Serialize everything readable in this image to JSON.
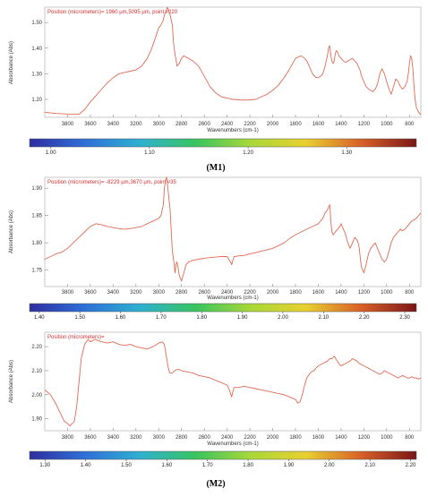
{
  "chart_data": [
    {
      "type": "line",
      "title": "Position (micrometers)= 1960 µm,5095 µm, point #220",
      "xlabel": "Wavenumbers (cm-1)",
      "ylabel": "Absorbance (Abs)",
      "x_reversed": true,
      "xlim": [
        4000,
        700
      ],
      "ylim": [
        1.13,
        1.56
      ],
      "xticks": [
        3800,
        3600,
        3400,
        3200,
        3000,
        2800,
        2600,
        2400,
        2200,
        2000,
        1800,
        1600,
        1400,
        1200,
        1000,
        800
      ],
      "yticks": [
        1.2,
        1.3,
        1.4,
        1.5
      ],
      "ytick_labels": [
        "1.20",
        "1.30",
        "1.40",
        "1.50"
      ],
      "line_color": "#e06a55",
      "series": [
        {
          "x": [
            4000,
            3900,
            3800,
            3700,
            3650,
            3600,
            3550,
            3500,
            3450,
            3400,
            3350,
            3300,
            3250,
            3200,
            3150,
            3100,
            3060,
            3030,
            3000,
            2980,
            2960,
            2950,
            2940,
            2925,
            2915,
            2900,
            2880,
            2870,
            2855,
            2850,
            2840,
            2820,
            2800,
            2780,
            2760,
            2740,
            2720,
            2700,
            2650,
            2600,
            2550,
            2500,
            2450,
            2400,
            2350,
            2300,
            2250,
            2200,
            2150,
            2100,
            2050,
            2000,
            1950,
            1900,
            1850,
            1800,
            1750,
            1720,
            1700,
            1680,
            1650,
            1620,
            1600,
            1580,
            1560,
            1540,
            1520,
            1510,
            1500,
            1495,
            1490,
            1480,
            1470,
            1460,
            1450,
            1440,
            1430,
            1420,
            1400,
            1380,
            1360,
            1340,
            1320,
            1300,
            1280,
            1260,
            1250,
            1240,
            1230,
            1220,
            1200,
            1180,
            1160,
            1140,
            1120,
            1100,
            1080,
            1060,
            1040,
            1020,
            1000,
            980,
            960,
            940,
            920,
            900,
            880,
            860,
            840,
            820,
            810,
            800,
            790,
            780,
            770,
            760,
            750,
            740,
            720,
            700
          ],
          "y": [
            1.15,
            1.145,
            1.143,
            1.142,
            1.16,
            1.19,
            1.215,
            1.24,
            1.265,
            1.285,
            1.3,
            1.305,
            1.31,
            1.315,
            1.33,
            1.36,
            1.4,
            1.44,
            1.48,
            1.49,
            1.51,
            1.53,
            1.54,
            1.56,
            1.55,
            1.53,
            1.49,
            1.42,
            1.37,
            1.36,
            1.33,
            1.34,
            1.36,
            1.37,
            1.365,
            1.36,
            1.355,
            1.35,
            1.33,
            1.29,
            1.25,
            1.225,
            1.21,
            1.205,
            1.2,
            1.198,
            1.197,
            1.198,
            1.2,
            1.21,
            1.22,
            1.235,
            1.255,
            1.285,
            1.32,
            1.36,
            1.37,
            1.36,
            1.35,
            1.33,
            1.3,
            1.285,
            1.285,
            1.29,
            1.3,
            1.33,
            1.37,
            1.4,
            1.41,
            1.39,
            1.37,
            1.35,
            1.34,
            1.35,
            1.38,
            1.39,
            1.385,
            1.37,
            1.36,
            1.35,
            1.345,
            1.35,
            1.355,
            1.36,
            1.35,
            1.34,
            1.33,
            1.32,
            1.31,
            1.29,
            1.27,
            1.25,
            1.24,
            1.235,
            1.23,
            1.24,
            1.26,
            1.3,
            1.32,
            1.3,
            1.27,
            1.24,
            1.22,
            1.25,
            1.28,
            1.27,
            1.25,
            1.24,
            1.25,
            1.27,
            1.3,
            1.34,
            1.37,
            1.36,
            1.32,
            1.25,
            1.2,
            1.17,
            1.15,
            1.14
          ]
        }
      ]
    },
    {
      "type": "colorbar",
      "tick_labels": [
        "1.00",
        "1.10",
        "1.20",
        "1.30"
      ],
      "tick_positions": [
        0.055,
        0.31,
        0.565,
        0.82
      ],
      "gradient": [
        "#2e2e9e",
        "#2f6fd8",
        "#2fb0d0",
        "#38c460",
        "#a8d838",
        "#e8d030",
        "#d86028",
        "#7a1616"
      ]
    },
    {
      "type": "line",
      "title": "Position (micrometers)= -8229 µm,3670 µm, point #35",
      "xlabel": "Wavenumbers (cm-1)",
      "ylabel": "Absorbance (Abs)",
      "x_reversed": true,
      "xlim": [
        4000,
        700
      ],
      "ylim": [
        1.72,
        1.92
      ],
      "xticks": [
        3800,
        3600,
        3400,
        3200,
        3000,
        2800,
        2600,
        2400,
        2200,
        2000,
        1800,
        1600,
        1400,
        1200,
        1000,
        800
      ],
      "yticks": [
        1.75,
        1.8,
        1.85,
        1.9
      ],
      "ytick_labels": [
        "1.75",
        "1.80",
        "1.85",
        "1.90"
      ],
      "line_color": "#e06a55",
      "series": [
        {
          "x": [
            4000,
            3950,
            3900,
            3850,
            3800,
            3750,
            3700,
            3650,
            3600,
            3550,
            3500,
            3450,
            3400,
            3350,
            3300,
            3250,
            3200,
            3150,
            3100,
            3050,
            3000,
            2980,
            2960,
            2950,
            2940,
            2930,
            2925,
            2915,
            2900,
            2890,
            2880,
            2870,
            2860,
            2855,
            2850,
            2840,
            2830,
            2820,
            2800,
            2780,
            2760,
            2740,
            2700,
            2650,
            2600,
            2550,
            2500,
            2450,
            2400,
            2370,
            2360,
            2340,
            2300,
            2250,
            2200,
            2150,
            2100,
            2050,
            2000,
            1950,
            1900,
            1850,
            1800,
            1750,
            1700,
            1650,
            1600,
            1560,
            1540,
            1520,
            1510,
            1500,
            1495,
            1490,
            1480,
            1470,
            1450,
            1430,
            1410,
            1400,
            1380,
            1360,
            1340,
            1320,
            1300,
            1280,
            1260,
            1250,
            1240,
            1230,
            1220,
            1200,
            1180,
            1160,
            1140,
            1120,
            1100,
            1080,
            1060,
            1040,
            1020,
            1000,
            980,
            960,
            940,
            920,
            900,
            880,
            860,
            840,
            820,
            800,
            780,
            760,
            740,
            720,
            700
          ],
          "y": [
            1.77,
            1.775,
            1.78,
            1.783,
            1.79,
            1.8,
            1.81,
            1.82,
            1.83,
            1.835,
            1.833,
            1.83,
            1.828,
            1.826,
            1.825,
            1.826,
            1.828,
            1.83,
            1.835,
            1.84,
            1.845,
            1.85,
            1.87,
            1.9,
            1.915,
            1.92,
            1.91,
            1.89,
            1.86,
            1.82,
            1.785,
            1.77,
            1.75,
            1.745,
            1.76,
            1.765,
            1.755,
            1.74,
            1.73,
            1.745,
            1.76,
            1.765,
            1.768,
            1.77,
            1.772,
            1.773,
            1.774,
            1.775,
            1.775,
            1.765,
            1.76,
            1.775,
            1.776,
            1.777,
            1.78,
            1.782,
            1.785,
            1.787,
            1.79,
            1.795,
            1.8,
            1.808,
            1.815,
            1.82,
            1.825,
            1.83,
            1.835,
            1.845,
            1.855,
            1.86,
            1.865,
            1.87,
            1.86,
            1.84,
            1.82,
            1.815,
            1.82,
            1.825,
            1.83,
            1.835,
            1.825,
            1.815,
            1.8,
            1.79,
            1.8,
            1.81,
            1.805,
            1.8,
            1.79,
            1.77,
            1.755,
            1.745,
            1.76,
            1.78,
            1.79,
            1.795,
            1.8,
            1.79,
            1.78,
            1.77,
            1.765,
            1.77,
            1.785,
            1.8,
            1.81,
            1.815,
            1.82,
            1.825,
            1.822,
            1.825,
            1.83,
            1.835,
            1.84,
            1.842,
            1.845,
            1.85,
            1.855
          ]
        }
      ]
    },
    {
      "type": "colorbar",
      "tick_labels": [
        "1.40",
        "1.50",
        "1.60",
        "1.70",
        "1.80",
        "1.90",
        "2.00",
        "2.10",
        "2.20",
        "2.30"
      ],
      "tick_positions": [
        0.025,
        0.13,
        0.235,
        0.34,
        0.445,
        0.55,
        0.655,
        0.76,
        0.865,
        0.97
      ],
      "gradient": [
        "#2e2e9e",
        "#2f6fd8",
        "#2fb0d0",
        "#38c460",
        "#a8d838",
        "#e8d030",
        "#d86028",
        "#7a1616"
      ]
    },
    {
      "type": "line",
      "title": "Position (micrometers)=",
      "xlabel": "Wavenumbers (cm-1)",
      "ylabel": "Absorbance (Abs)",
      "x_reversed": true,
      "xlim": [
        4000,
        700
      ],
      "ylim": [
        1.85,
        2.26
      ],
      "xticks": [
        3800,
        3600,
        3400,
        3200,
        3000,
        2800,
        2600,
        2400,
        2200,
        2000,
        1800,
        1600,
        1400,
        1200,
        1000,
        800
      ],
      "yticks": [
        1.9,
        2.0,
        2.1,
        2.2
      ],
      "ytick_labels": [
        "1.90",
        "2.00",
        "2.10",
        "2.20"
      ],
      "line_color": "#e06a55",
      "series": [
        {
          "x": [
            4000,
            3950,
            3900,
            3860,
            3830,
            3800,
            3780,
            3760,
            3740,
            3720,
            3700,
            3680,
            3650,
            3620,
            3600,
            3560,
            3500,
            3450,
            3400,
            3350,
            3300,
            3250,
            3200,
            3150,
            3100,
            3050,
            3000,
            2970,
            2950,
            2930,
            2920,
            2910,
            2900,
            2880,
            2860,
            2840,
            2820,
            2800,
            2750,
            2700,
            2650,
            2600,
            2550,
            2500,
            2450,
            2400,
            2380,
            2360,
            2340,
            2300,
            2250,
            2200,
            2150,
            2100,
            2050,
            2000,
            1950,
            1900,
            1850,
            1800,
            1780,
            1760,
            1740,
            1720,
            1700,
            1680,
            1660,
            1640,
            1620,
            1600,
            1560,
            1520,
            1500,
            1480,
            1460,
            1440,
            1420,
            1400,
            1380,
            1360,
            1340,
            1320,
            1300,
            1280,
            1260,
            1240,
            1220,
            1200,
            1180,
            1160,
            1140,
            1120,
            1100,
            1080,
            1060,
            1040,
            1020,
            1000,
            980,
            960,
            940,
            920,
            900,
            880,
            860,
            840,
            820,
            800,
            780,
            760,
            740,
            720,
            700
          ],
          "y": [
            2.02,
            2.0,
            1.96,
            1.92,
            1.89,
            1.88,
            1.87,
            1.88,
            1.89,
            1.95,
            2.05,
            2.15,
            2.21,
            2.23,
            2.22,
            2.23,
            2.22,
            2.215,
            2.22,
            2.21,
            2.205,
            2.21,
            2.2,
            2.195,
            2.19,
            2.2,
            2.215,
            2.22,
            2.21,
            2.15,
            2.12,
            2.1,
            2.09,
            2.09,
            2.1,
            2.105,
            2.105,
            2.1,
            2.095,
            2.09,
            2.08,
            2.075,
            2.07,
            2.06,
            2.05,
            2.04,
            2.02,
            1.99,
            2.03,
            2.03,
            2.035,
            2.03,
            2.025,
            2.02,
            2.015,
            2.01,
            2.005,
            2.0,
            1.99,
            1.98,
            1.965,
            1.97,
            2.0,
            2.04,
            2.07,
            2.085,
            2.095,
            2.1,
            2.11,
            2.12,
            2.13,
            2.14,
            2.15,
            2.15,
            2.16,
            2.145,
            2.13,
            2.12,
            2.125,
            2.13,
            2.135,
            2.14,
            2.15,
            2.145,
            2.14,
            2.13,
            2.125,
            2.12,
            2.115,
            2.11,
            2.105,
            2.1,
            2.095,
            2.09,
            2.085,
            2.09,
            2.1,
            2.095,
            2.09,
            2.085,
            2.08,
            2.075,
            2.07,
            2.075,
            2.08,
            2.075,
            2.07,
            2.07,
            2.075,
            2.07,
            2.07,
            2.065,
            2.07
          ]
        }
      ]
    },
    {
      "type": "colorbar",
      "tick_labels": [
        "1.30",
        "1.40",
        "1.50",
        "1.60",
        "1.70",
        "1.80",
        "1.90",
        "2.00",
        "2.10",
        "2.20"
      ],
      "tick_positions": [
        0.04,
        0.145,
        0.25,
        0.355,
        0.46,
        0.565,
        0.67,
        0.775,
        0.88,
        0.985
      ],
      "gradient": [
        "#2e2e9e",
        "#2f6fd8",
        "#2fb0d0",
        "#38c460",
        "#a8d838",
        "#e8d030",
        "#d86028",
        "#7a1616"
      ]
    }
  ],
  "captions": {
    "m1": "(M1)",
    "m2": "(M2)"
  }
}
